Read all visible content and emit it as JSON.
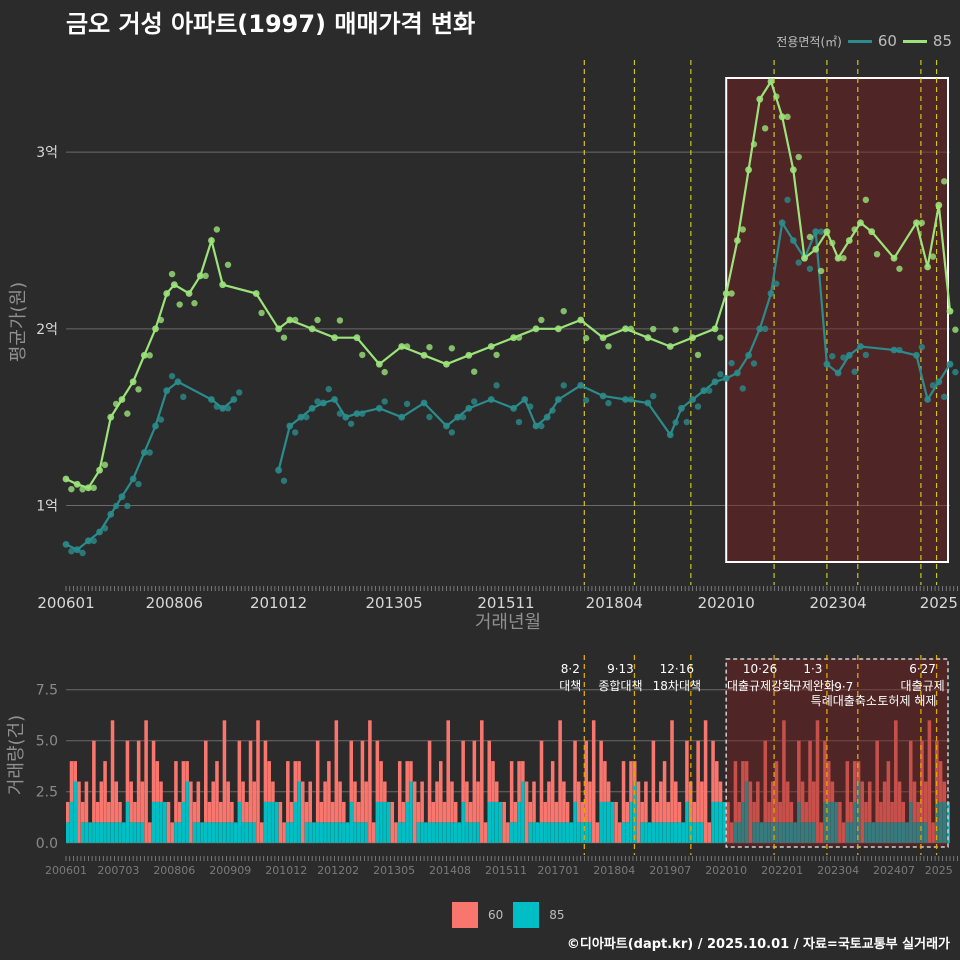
{
  "title": "금오 거성 아파트(1997) 매매가격 변화",
  "legend": {
    "title": "전용면적(㎡)",
    "items": [
      {
        "label": "60",
        "line_color": "#2a8c8c",
        "bar_color": "#f8766d"
      },
      {
        "label": "85",
        "line_color": "#9be37a",
        "bar_color": "#00bfc4"
      }
    ]
  },
  "footer": "©디아파트(dapt.kr) / 2025.10.01 / 자료=국토교통부 실거래가",
  "chart_data": [
    {
      "type": "line",
      "title": "금오 거성 아파트(1997) 매매가격 변화",
      "xlabel": "거래년월",
      "ylabel": "평균가(원)",
      "x_range": [
        2006.0,
        2025.75
      ],
      "ylim": [
        0.55,
        3.55
      ],
      "y_ticks": [
        1,
        2,
        3
      ],
      "y_tick_labels": [
        "1억",
        "2억",
        "3억"
      ],
      "x_ticks": [
        2006.0,
        2008.42,
        2010.75,
        2013.33,
        2015.83,
        2018.25,
        2020.75,
        2023.25,
        2025.5
      ],
      "x_tick_labels": [
        "200601",
        "200806",
        "201012",
        "201305",
        "201511",
        "201804",
        "202010",
        "202304",
        "2025"
      ],
      "highlight_range": [
        2020.75,
        2025.75
      ],
      "policy_lines": [
        2017.58,
        2018.7,
        2019.96,
        2021.82,
        2023.0,
        2023.69,
        2025.1,
        2025.45
      ],
      "series": [
        {
          "name": "60",
          "x": [
            2006.0,
            2006.25,
            2006.5,
            2006.75,
            2007.0,
            2007.25,
            2007.5,
            2007.75,
            2008.0,
            2008.25,
            2008.5,
            2009.25,
            2009.5,
            2009.75,
            2010.25,
            2010.75,
            2011.0,
            2011.25,
            2011.5,
            2011.75,
            2012.0,
            2012.25,
            2012.5,
            2013.0,
            2013.5,
            2014.0,
            2014.5,
            2014.75,
            2015.0,
            2015.5,
            2016.0,
            2016.25,
            2016.5,
            2016.75,
            2017.0,
            2017.5,
            2018.0,
            2018.5,
            2019.0,
            2019.5,
            2019.75,
            2020.0,
            2020.25,
            2020.5,
            2020.75,
            2021.0,
            2021.25,
            2021.5,
            2021.75,
            2022.0,
            2022.25,
            2022.5,
            2022.75,
            2023.0,
            2023.25,
            2023.5,
            2023.75,
            2024.5,
            2025.0,
            2025.25,
            2025.5,
            2025.75
          ],
          "y": [
            0.78,
            0.75,
            0.8,
            0.85,
            0.95,
            1.05,
            1.15,
            1.3,
            1.45,
            1.65,
            1.7,
            1.6,
            1.55,
            1.6,
            null,
            1.2,
            1.45,
            1.5,
            1.55,
            1.58,
            1.6,
            1.5,
            1.52,
            1.55,
            1.5,
            1.58,
            1.45,
            1.5,
            1.55,
            1.6,
            1.55,
            1.6,
            1.45,
            1.5,
            1.6,
            1.68,
            1.62,
            1.6,
            1.58,
            1.4,
            1.55,
            1.6,
            1.65,
            1.7,
            1.72,
            1.75,
            1.85,
            2.0,
            2.2,
            2.6,
            2.5,
            2.4,
            2.55,
            1.8,
            1.75,
            1.85,
            1.9,
            1.88,
            1.85,
            1.6,
            1.7,
            1.8
          ]
        },
        {
          "name": "85",
          "x": [
            2006.0,
            2006.25,
            2006.5,
            2006.75,
            2007.0,
            2007.25,
            2007.5,
            2007.75,
            2008.0,
            2008.25,
            2008.42,
            2008.75,
            2009.0,
            2009.25,
            2009.5,
            2010.25,
            2010.75,
            2011.0,
            2011.5,
            2012.0,
            2012.5,
            2013.0,
            2013.5,
            2014.0,
            2014.5,
            2015.0,
            2015.5,
            2016.0,
            2016.5,
            2017.0,
            2017.5,
            2018.0,
            2018.5,
            2019.0,
            2019.5,
            2020.0,
            2020.5,
            2020.75,
            2021.0,
            2021.25,
            2021.5,
            2021.75,
            2022.0,
            2022.25,
            2022.5,
            2022.75,
            2023.0,
            2023.25,
            2023.5,
            2023.75,
            2024.0,
            2024.5,
            2025.0,
            2025.25,
            2025.5,
            2025.75
          ],
          "y": [
            1.15,
            1.12,
            1.1,
            1.2,
            1.5,
            1.6,
            1.7,
            1.85,
            2.0,
            2.2,
            2.25,
            2.2,
            2.3,
            2.5,
            2.25,
            2.2,
            2.0,
            2.05,
            2.0,
            1.95,
            1.95,
            1.8,
            1.9,
            1.85,
            1.8,
            1.85,
            1.9,
            1.95,
            2.0,
            2.0,
            2.05,
            1.95,
            2.0,
            1.95,
            1.9,
            1.95,
            2.0,
            2.2,
            2.5,
            2.9,
            3.3,
            3.4,
            3.2,
            2.9,
            2.4,
            2.45,
            2.55,
            2.4,
            2.5,
            2.6,
            2.55,
            2.4,
            2.6,
            2.35,
            2.7,
            2.1
          ]
        }
      ]
    },
    {
      "type": "bar",
      "stacked": true,
      "ylabel": "거래량(건)",
      "ylim": [
        -0.6,
        9.2
      ],
      "y_ticks": [
        0,
        2.5,
        5,
        7.5
      ],
      "y_tick_labels": [
        "0.0",
        "2.5",
        "5.0",
        "7.5"
      ],
      "x_range": [
        2006.0,
        2025.75
      ],
      "x_ticks": [
        2006.0,
        2007.17,
        2008.42,
        2009.67,
        2010.92,
        2012.08,
        2013.33,
        2014.58,
        2015.83,
        2017.0,
        2018.25,
        2019.5,
        2020.75,
        2022.0,
        2023.25,
        2024.5,
        2025.5
      ],
      "x_tick_labels": [
        "200601",
        "200703",
        "200806",
        "200909",
        "201012",
        "201202",
        "201305",
        "201408",
        "201511",
        "201701",
        "201804",
        "201907",
        "202010",
        "202201",
        "202304",
        "202407",
        "2025"
      ],
      "highlight_range": [
        2020.75,
        2025.75
      ],
      "policy_lines": [
        2017.58,
        2018.7,
        2019.96,
        2021.82,
        2023.0,
        2023.69,
        2025.1,
        2025.45
      ],
      "annotations": [
        {
          "x": 2017.58,
          "date": "8·2",
          "label": "대책"
        },
        {
          "x": 2018.7,
          "date": "9·13",
          "label": "종합대책"
        },
        {
          "x": 2019.96,
          "date": "12·16",
          "label": "18차대책"
        },
        {
          "x": 2021.82,
          "date": "10·26",
          "label": "대출규제강화"
        },
        {
          "x": 2023.0,
          "date": "1·3",
          "label": "규제완화"
        },
        {
          "x": 2023.69,
          "date": "9·7",
          "label": "특례대출축소"
        },
        {
          "x": 2025.1,
          "date": "",
          "label": "토허제 해제"
        },
        {
          "x": 2025.45,
          "date": "6·27",
          "label": "대출규제"
        }
      ],
      "months": 237,
      "series": [
        {
          "name": "60",
          "values_pattern": [
            1,
            2,
            1,
            3,
            1,
            2,
            0,
            4,
            1,
            2,
            3,
            1,
            5,
            2,
            1,
            0,
            3,
            2,
            1,
            4,
            2,
            6,
            1,
            3,
            2,
            1,
            0,
            2,
            1,
            3
          ]
        },
        {
          "name": "85",
          "values_pattern": [
            1,
            1,
            2,
            1,
            0,
            1,
            1,
            2,
            1,
            0,
            1,
            2,
            1,
            1,
            3,
            1,
            0,
            1,
            2,
            1,
            1,
            0,
            2,
            1,
            1,
            2,
            1,
            0,
            1,
            1
          ]
        }
      ]
    }
  ]
}
